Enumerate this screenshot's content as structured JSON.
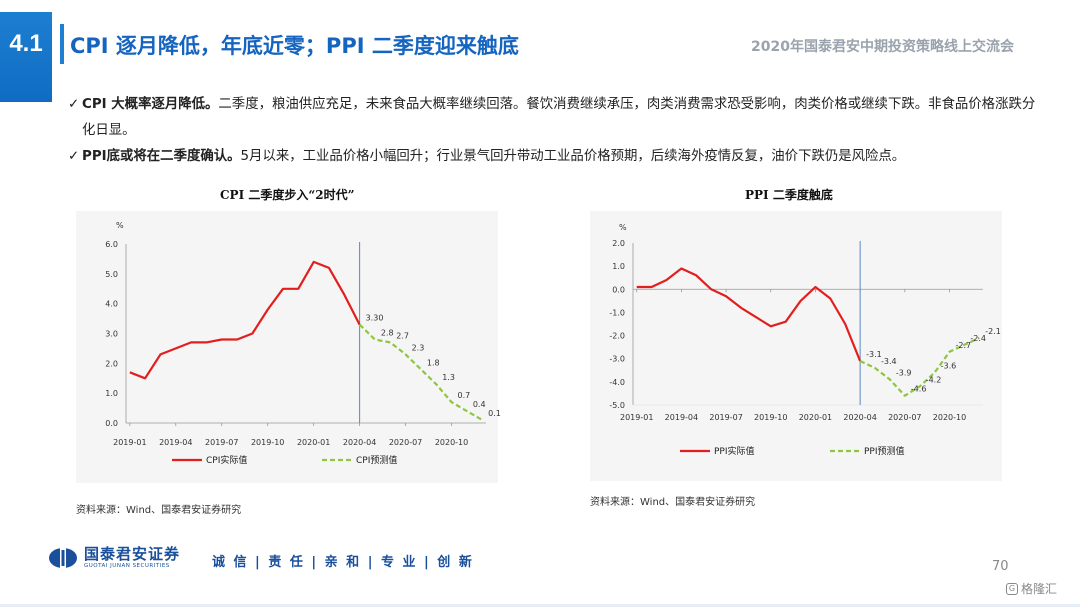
{
  "header": {
    "section_number": "4.1",
    "title": "CPI 逐月降低，年底近零；PPI 二季度迎来触底",
    "conference": "2020年国泰君安中期投资策略线上交流会"
  },
  "bullets": [
    {
      "check": "✓",
      "bold": "CPI 大概率逐月降低。",
      "text": "二季度，粮油供应充足，未来食品大概率继续回落。餐饮消费继续承压，肉类消费需求恐受影响，肉类价格或继续下跌。非食品价格涨跌分化日显。"
    },
    {
      "check": "✓",
      "bold": "PPI底或将在二季度确认。",
      "text": "5月以来，工业品价格小幅回升；行业景气回升带动工业品价格预期，后续海外疫情反复，油价下跌仍是风险点。"
    }
  ],
  "chart_data": [
    {
      "type": "line",
      "title": "CPI 二季度步入“2时代”",
      "unit": "%",
      "ylim": [
        0.0,
        6.0
      ],
      "yticks": [
        "6.0",
        "5.0",
        "4.0",
        "3.0",
        "2.0",
        "1.0",
        "0.0"
      ],
      "xticks": [
        "2019-01",
        "2019-04",
        "2019-07",
        "2019-10",
        "2020-01",
        "2020-04",
        "2020-07",
        "2020-10"
      ],
      "divider_after": "2020-04",
      "series": [
        {
          "name": "CPI实际值",
          "color": "#e31e1e",
          "style": "solid",
          "points": [
            [
              "2019-01",
              1.7
            ],
            [
              "2019-02",
              1.5
            ],
            [
              "2019-03",
              2.3
            ],
            [
              "2019-04",
              2.5
            ],
            [
              "2019-05",
              2.7
            ],
            [
              "2019-06",
              2.7
            ],
            [
              "2019-07",
              2.8
            ],
            [
              "2019-08",
              2.8
            ],
            [
              "2019-09",
              3.0
            ],
            [
              "2019-10",
              3.8
            ],
            [
              "2019-11",
              4.5
            ],
            [
              "2019-12",
              4.5
            ],
            [
              "2020-01",
              5.4
            ],
            [
              "2020-02",
              5.2
            ],
            [
              "2020-03",
              4.3
            ],
            [
              "2020-04",
              3.3
            ]
          ]
        },
        {
          "name": "CPI预测值",
          "color": "#8dc63f",
          "style": "dashed",
          "points": [
            [
              "2020-04",
              3.3
            ],
            [
              "2020-05",
              2.8
            ],
            [
              "2020-06",
              2.7
            ],
            [
              "2020-07",
              2.3
            ],
            [
              "2020-08",
              1.8
            ],
            [
              "2020-09",
              1.3
            ],
            [
              "2020-10",
              0.7
            ],
            [
              "2020-11",
              0.4
            ],
            [
              "2020-12",
              0.1
            ]
          ],
          "labels": [
            "3.30",
            "2.8",
            "2.7",
            "2.3",
            "1.8",
            "1.3",
            "0.7",
            "0.4",
            "0.1"
          ]
        }
      ],
      "source": "资料来源：Wind、国泰君安证券研究"
    },
    {
      "type": "line",
      "title": "PPI 二季度触底",
      "unit": "%",
      "ylim": [
        -5.0,
        2.0
      ],
      "yticks": [
        "2.0",
        "1.0",
        "0.0",
        "-1.0",
        "-2.0",
        "-3.0",
        "-4.0",
        "-5.0"
      ],
      "xticks": [
        "2019-01",
        "2019-04",
        "2019-07",
        "2019-10",
        "2020-01",
        "2020-04",
        "2020-07",
        "2020-10"
      ],
      "divider_after": "2020-04",
      "series": [
        {
          "name": "PPI实际值",
          "color": "#e31e1e",
          "style": "solid",
          "points": [
            [
              "2019-01",
              0.1
            ],
            [
              "2019-02",
              0.1
            ],
            [
              "2019-03",
              0.4
            ],
            [
              "2019-04",
              0.9
            ],
            [
              "2019-05",
              0.6
            ],
            [
              "2019-06",
              0.0
            ],
            [
              "2019-07",
              -0.3
            ],
            [
              "2019-08",
              -0.8
            ],
            [
              "2019-09",
              -1.2
            ],
            [
              "2019-10",
              -1.6
            ],
            [
              "2019-11",
              -1.4
            ],
            [
              "2019-12",
              -0.5
            ],
            [
              "2020-01",
              0.1
            ],
            [
              "2020-02",
              -0.4
            ],
            [
              "2020-03",
              -1.5
            ],
            [
              "2020-04",
              -3.1
            ]
          ]
        },
        {
          "name": "PPI预测值",
          "color": "#8dc63f",
          "style": "dashed",
          "points": [
            [
              "2020-04",
              -3.1
            ],
            [
              "2020-05",
              -3.4
            ],
            [
              "2020-06",
              -3.9
            ],
            [
              "2020-07",
              -4.6
            ],
            [
              "2020-08",
              -4.2
            ],
            [
              "2020-09",
              -3.6
            ],
            [
              "2020-10",
              -2.7
            ],
            [
              "2020-11",
              -2.4
            ],
            [
              "2020-12",
              -2.1
            ]
          ],
          "labels": [
            "-3.1",
            "-3.4",
            "-3.9",
            "-4.6",
            "-4.2",
            "-3.6",
            "-2.7",
            "-2.4",
            "-2.1"
          ]
        }
      ],
      "source": "资料来源：Wind、国泰君安证券研究"
    }
  ],
  "footer": {
    "company_cn": "国泰君安证券",
    "company_en": "GUOTAI JUNAN SECURITIES",
    "slogan": "诚 信 | 责 任 | 亲 和 | 专 业 | 创 新",
    "page_number": "70",
    "watermark": "格隆汇",
    "watermark_icon": "G"
  }
}
